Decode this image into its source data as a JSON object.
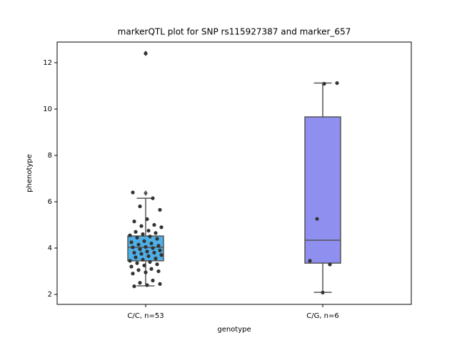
{
  "chart_data": {
    "type": "box",
    "title": "markerQTL plot for SNP rs115927387 and marker_657",
    "xlabel": "genotype",
    "ylabel": "phenotype",
    "categories": [
      "C/C, n=53",
      "C/G, n=6"
    ],
    "ylim": [
      1.57,
      12.89
    ],
    "yticks": [
      2,
      4,
      6,
      8,
      10,
      12
    ],
    "groups": [
      {
        "color": "#4fb0e8",
        "q1": 3.45,
        "median": 4.03,
        "q3": 4.52,
        "whislo": 2.37,
        "whishi": 6.15,
        "fliers": [
          6.37,
          12.4
        ],
        "points": [
          12.4,
          6.4,
          6.15,
          5.8,
          5.65,
          5.25,
          5.15,
          5.0,
          4.95,
          4.9,
          4.75,
          4.7,
          4.65,
          4.6,
          4.55,
          4.5,
          4.45,
          4.4,
          4.3,
          4.25,
          4.2,
          4.15,
          4.1,
          4.05,
          4.03,
          4.0,
          3.95,
          3.9,
          3.85,
          3.8,
          3.8,
          3.75,
          3.7,
          3.65,
          3.6,
          3.55,
          3.5,
          3.45,
          3.4,
          3.35,
          3.3,
          3.25,
          3.2,
          3.1,
          3.05,
          3.0,
          2.95,
          2.9,
          2.6,
          2.5,
          2.45,
          2.4,
          2.35
        ]
      },
      {
        "color": "#8f8ff0",
        "q1": 3.35,
        "median": 4.34,
        "q3": 9.66,
        "whislo": 2.09,
        "whishi": 11.12,
        "fliers": [],
        "points": [
          2.08,
          3.45,
          3.29,
          5.26,
          11.12,
          11.09
        ]
      }
    ],
    "point_color": "#333333"
  }
}
